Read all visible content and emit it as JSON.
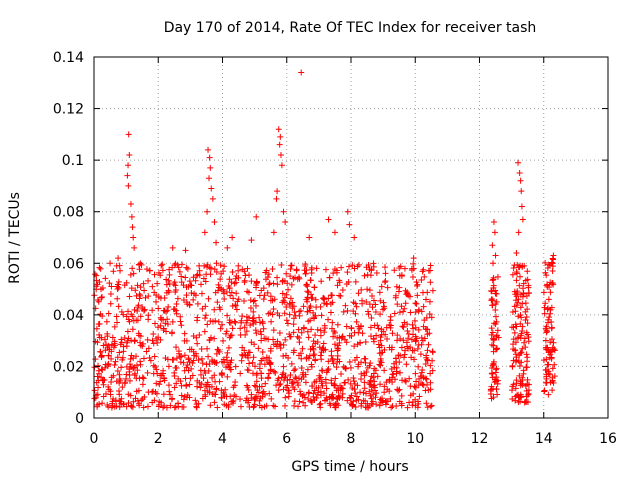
{
  "chart_data": {
    "type": "scatter",
    "title": "Day 170 of 2014, Rate Of TEC Index for receiver tash",
    "xlabel": "GPS time / hours",
    "ylabel": "ROTI / TECUs",
    "xlim": [
      0,
      16
    ],
    "ylim": [
      0,
      0.14
    ],
    "grid": true,
    "marker": "+",
    "marker_color": "#ff0000",
    "x_ticks": [
      {
        "value": 0,
        "label": "0"
      },
      {
        "value": 2,
        "label": "2"
      },
      {
        "value": 4,
        "label": "4"
      },
      {
        "value": 6,
        "label": "6"
      },
      {
        "value": 8,
        "label": "8"
      },
      {
        "value": 10,
        "label": "10"
      },
      {
        "value": 12,
        "label": "12"
      },
      {
        "value": 14,
        "label": "14"
      },
      {
        "value": 16,
        "label": "16"
      }
    ],
    "y_ticks": [
      {
        "value": 0,
        "label": "0"
      },
      {
        "value": 0.02,
        "label": "0.02"
      },
      {
        "value": 0.04,
        "label": "0.04"
      },
      {
        "value": 0.06,
        "label": "0.06"
      },
      {
        "value": 0.08,
        "label": "0.08"
      },
      {
        "value": 0.1,
        "label": "0.1"
      },
      {
        "value": 0.12,
        "label": "0.12"
      },
      {
        "value": 0.14,
        "label": "0.14"
      }
    ],
    "dense_segments": [
      {
        "x_start": 0.0,
        "x_end": 10.55,
        "y_min": 0.004,
        "y_max": 0.06,
        "count": 1600
      },
      {
        "x_start": 12.35,
        "x_end": 12.6,
        "y_min": 0.007,
        "y_max": 0.055,
        "count": 70
      },
      {
        "x_start": 13.0,
        "x_end": 13.55,
        "y_min": 0.006,
        "y_max": 0.06,
        "count": 140
      },
      {
        "x_start": 14.0,
        "x_end": 14.35,
        "y_min": 0.009,
        "y_max": 0.062,
        "count": 90
      }
    ],
    "points": [
      [
        1.08,
        0.11
      ],
      [
        1.1,
        0.102
      ],
      [
        1.06,
        0.098
      ],
      [
        1.04,
        0.094
      ],
      [
        1.07,
        0.09
      ],
      [
        1.15,
        0.083
      ],
      [
        1.18,
        0.078
      ],
      [
        1.2,
        0.074
      ],
      [
        1.22,
        0.07
      ],
      [
        1.25,
        0.066
      ],
      [
        3.55,
        0.104
      ],
      [
        3.6,
        0.101
      ],
      [
        3.62,
        0.097
      ],
      [
        3.58,
        0.093
      ],
      [
        3.65,
        0.089
      ],
      [
        3.7,
        0.085
      ],
      [
        3.52,
        0.08
      ],
      [
        3.75,
        0.076
      ],
      [
        3.45,
        0.072
      ],
      [
        3.8,
        0.068
      ],
      [
        5.75,
        0.112
      ],
      [
        5.8,
        0.109
      ],
      [
        5.78,
        0.106
      ],
      [
        5.82,
        0.102
      ],
      [
        5.85,
        0.098
      ],
      [
        5.7,
        0.088
      ],
      [
        5.68,
        0.085
      ],
      [
        5.9,
        0.08
      ],
      [
        5.95,
        0.076
      ],
      [
        5.6,
        0.072
      ],
      [
        6.45,
        0.134
      ],
      [
        7.3,
        0.077
      ],
      [
        7.5,
        0.072
      ],
      [
        7.9,
        0.08
      ],
      [
        7.95,
        0.075
      ],
      [
        8.1,
        0.07
      ],
      [
        6.7,
        0.07
      ],
      [
        5.05,
        0.078
      ],
      [
        4.9,
        0.069
      ],
      [
        2.45,
        0.066
      ],
      [
        2.85,
        0.065
      ],
      [
        4.3,
        0.07
      ],
      [
        4.15,
        0.066
      ],
      [
        0.5,
        0.06
      ],
      [
        0.75,
        0.062
      ],
      [
        9.95,
        0.062
      ],
      [
        12.45,
        0.076
      ],
      [
        12.48,
        0.072
      ],
      [
        12.4,
        0.067
      ],
      [
        12.5,
        0.063
      ],
      [
        12.42,
        0.06
      ],
      [
        13.2,
        0.099
      ],
      [
        13.25,
        0.095
      ],
      [
        13.28,
        0.092
      ],
      [
        13.3,
        0.088
      ],
      [
        13.32,
        0.082
      ],
      [
        13.35,
        0.077
      ],
      [
        13.22,
        0.072
      ],
      [
        13.15,
        0.064
      ],
      [
        14.3,
        0.063
      ],
      [
        14.25,
        0.06
      ]
    ]
  }
}
